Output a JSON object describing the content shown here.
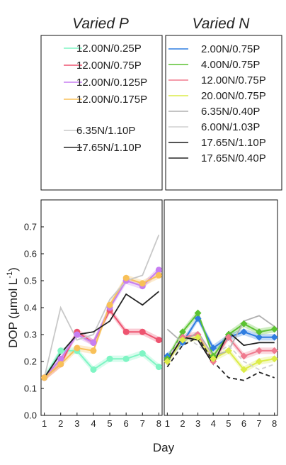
{
  "chart_data": [
    {
      "type": "line",
      "title": "Varied P",
      "xlabel": "Day",
      "ylabel": "DOP (μmol L-1)",
      "ylabel_main": "DOP (μmol L",
      "ylabel_sup": "-1",
      "ylabel_close": ")",
      "x": [
        1,
        2,
        3,
        4,
        5,
        6,
        7,
        8
      ],
      "xlim": [
        0.8,
        8.2
      ],
      "ylim": [
        0,
        0.8
      ],
      "yticks": [
        "0.0",
        "0.1",
        "0.2",
        "0.3",
        "0.4",
        "0.5",
        "0.6",
        "0.7"
      ],
      "legend_position": "above-plot",
      "series": [
        {
          "name": "12.00N/0.25P",
          "color": "#7ff5c4",
          "marker": "circle",
          "band": true,
          "values": [
            0.14,
            0.24,
            0.24,
            0.17,
            0.21,
            0.21,
            0.23,
            0.18
          ]
        },
        {
          "name": "12.00N/0.75P",
          "color": "#ee5470",
          "marker": "circle",
          "band": true,
          "values": [
            0.14,
            0.19,
            0.31,
            0.27,
            0.39,
            0.31,
            0.31,
            0.28
          ]
        },
        {
          "name": "12.00N/0.125P",
          "color": "#c77ef2",
          "marker": "circle",
          "band": true,
          "values": [
            0.14,
            0.21,
            0.3,
            0.27,
            0.4,
            0.5,
            0.48,
            0.54
          ]
        },
        {
          "name": "12.00N/0.175P",
          "color": "#f8c058",
          "marker": "circle",
          "band": true,
          "values": [
            0.14,
            0.19,
            0.25,
            0.24,
            0.41,
            0.51,
            0.49,
            0.52
          ]
        },
        {
          "name": "6.35N/1.10P",
          "color": "#c8c8c8",
          "marker": "none",
          "band": false,
          "values": [
            0.14,
            0.4,
            0.28,
            0.3,
            0.43,
            0.5,
            0.52,
            0.67
          ]
        },
        {
          "name": "17.65N/1.10P",
          "color": "#262626",
          "marker": "none",
          "band": false,
          "values": [
            0.14,
            0.23,
            0.3,
            0.31,
            0.35,
            0.45,
            0.41,
            0.46
          ]
        }
      ]
    },
    {
      "type": "line",
      "title": "Varied N",
      "xlabel": "Day",
      "x": [
        1,
        2,
        3,
        4,
        5,
        6,
        7,
        8
      ],
      "xlim": [
        0.8,
        8.2
      ],
      "ylim": [
        0,
        0.8
      ],
      "legend_position": "above-plot",
      "series": [
        {
          "name": "2.00N/0.75P",
          "color": "#2f7de0",
          "marker": "diamond",
          "band": true,
          "dash": false,
          "values": [
            0.22,
            0.27,
            0.36,
            0.25,
            0.29,
            0.31,
            0.29,
            0.29
          ]
        },
        {
          "name": "4.00N/0.75P",
          "color": "#5cc232",
          "marker": "diamond",
          "band": true,
          "dash": false,
          "values": [
            0.21,
            0.31,
            0.38,
            0.22,
            0.3,
            0.34,
            0.31,
            0.32
          ]
        },
        {
          "name": "12.00N/0.75P",
          "color": "#f07a8e",
          "marker": "diamond",
          "band": true,
          "dash": false,
          "values": [
            0.2,
            0.29,
            0.3,
            0.2,
            0.29,
            0.22,
            0.24,
            0.24
          ]
        },
        {
          "name": "20.00N/0.75P",
          "color": "#dcec48",
          "marker": "diamond",
          "band": true,
          "dash": false,
          "values": [
            0.2,
            0.28,
            0.29,
            0.21,
            0.24,
            0.17,
            0.2,
            0.21
          ]
        },
        {
          "name": "6.35N/0.40P",
          "color": "#b0b0b0",
          "marker": "none",
          "band": false,
          "dash": false,
          "values": [
            0.32,
            0.27,
            0.31,
            0.22,
            0.24,
            0.35,
            0.37,
            0.33
          ]
        },
        {
          "name": "6.00N/1.03P",
          "color": "#d0d0d0",
          "marker": "none",
          "band": false,
          "dash": true,
          "values": [
            0.21,
            0.3,
            0.26,
            0.22,
            0.26,
            0.2,
            0.17,
            0.19
          ]
        },
        {
          "name": "17.65N/1.10P",
          "color": "#1c1c1c",
          "marker": "none",
          "band": false,
          "dash": false,
          "values": [
            0.2,
            0.29,
            0.28,
            0.19,
            0.31,
            0.26,
            0.27,
            0.27
          ]
        },
        {
          "name": "17.65N/0.40P",
          "color": "#262626",
          "marker": "none",
          "band": false,
          "dash": true,
          "values": [
            0.18,
            0.26,
            0.29,
            0.2,
            0.14,
            0.13,
            0.16,
            0.14
          ]
        }
      ]
    }
  ]
}
